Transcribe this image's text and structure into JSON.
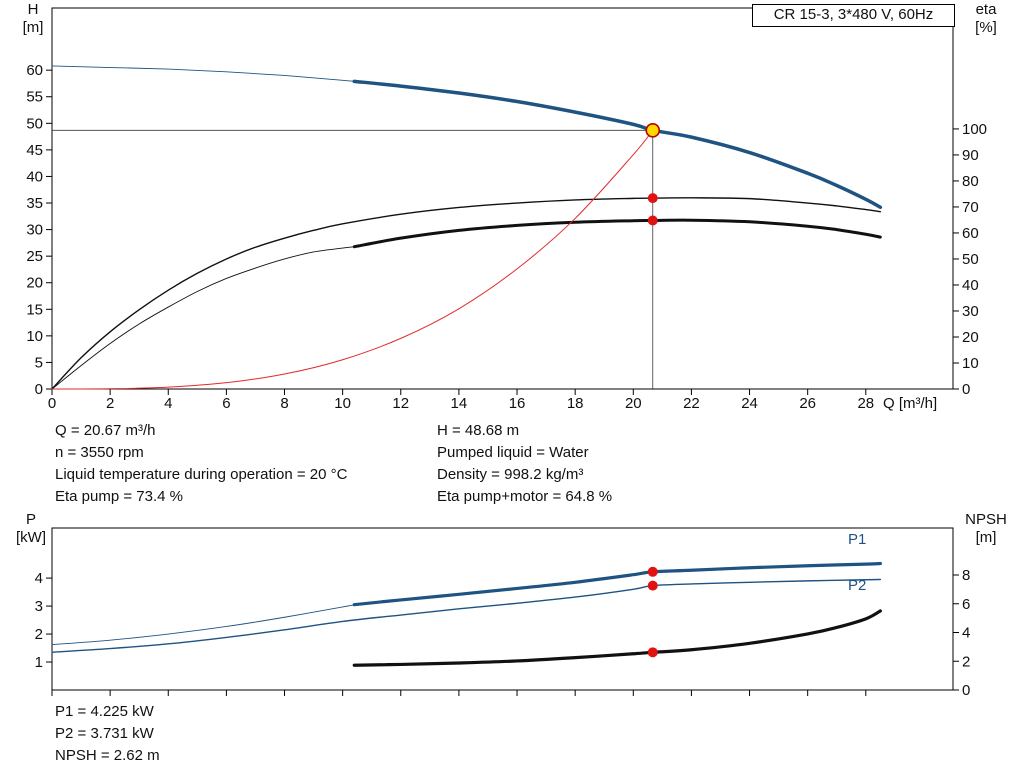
{
  "title_box": "CR 15-3, 3*480 V, 60Hz",
  "labels": {
    "h_axis": "H",
    "h_unit": "[m]",
    "eta_axis": "eta",
    "eta_unit": "[%]",
    "q_axis": "Q [m³/h]",
    "p_axis": "P",
    "p_unit": "[kW]",
    "npsh_axis": "NPSH",
    "npsh_unit": "[m]",
    "p1": "P1",
    "p2": "P2"
  },
  "colors": {
    "curve_blue": "#1e5382",
    "curve_black": "#111111",
    "system_red": "#e02b2b",
    "marker_red": "#e01212",
    "duty_fill": "#ffd900",
    "duty_stroke": "#b40000",
    "guide_gray": "#3c3c3c"
  },
  "info_top": {
    "left": [
      "Q = 20.67 m³/h",
      "n = 3550 rpm",
      "Liquid temperature during operation = 20 °C",
      "Eta pump = 73.4 %"
    ],
    "right": [
      "H = 48.68 m",
      "Pumped liquid = Water",
      "Density = 998.2 kg/m³",
      "Eta pump+motor = 64.8 %"
    ]
  },
  "info_bottom": [
    "P1 = 4.225 kW",
    "P2 = 3.731 kW",
    "NPSH = 2.62 m"
  ],
  "chart_data": [
    {
      "type": "line",
      "title": "CR 15-3, 3*480 V, 60Hz",
      "xlabel": "Q [m³/h]",
      "ylabel_left": "H [m]",
      "ylabel_right": "eta [%]",
      "x_range": [
        0,
        31
      ],
      "y_left_range": [
        0,
        71.7
      ],
      "y_right_range": [
        0,
        146.5
      ],
      "x_ticks": [
        0,
        2,
        4,
        6,
        8,
        10,
        12,
        14,
        16,
        18,
        20,
        22,
        24,
        26,
        28
      ],
      "y_left_ticks": [
        0,
        5,
        10,
        15,
        20,
        25,
        30,
        35,
        40,
        45,
        50,
        55,
        60
      ],
      "y_right_ticks": [
        0,
        10,
        20,
        30,
        40,
        50,
        60,
        70,
        80,
        90,
        100
      ],
      "show_x_tick_labels": true,
      "operating_point": {
        "Q": 20.67,
        "H": 48.68,
        "eta_pump": 73.4,
        "eta_pump_motor": 64.8
      },
      "series": [
        {
          "name": "head-curve-extension",
          "axis": "left",
          "color": "#1e5382",
          "width": 0.9,
          "points": [
            [
              0,
              60.8
            ],
            [
              2,
              60.5
            ],
            [
              4,
              60.2
            ],
            [
              6,
              59.7
            ],
            [
              8,
              59.0
            ],
            [
              10,
              58.1
            ],
            [
              10.4,
              57.9
            ]
          ]
        },
        {
          "name": "head-curve",
          "axis": "left",
          "color": "#1e5382",
          "width": 3.5,
          "points": [
            [
              10.4,
              57.9
            ],
            [
              12,
              57.0
            ],
            [
              14,
              55.7
            ],
            [
              16,
              54.1
            ],
            [
              18,
              52.1
            ],
            [
              20,
              49.8
            ],
            [
              20.67,
              48.68
            ],
            [
              22,
              47.4
            ],
            [
              24,
              44.5
            ],
            [
              26,
              40.6
            ],
            [
              27,
              38.3
            ],
            [
              28,
              35.7
            ],
            [
              28.5,
              34.2
            ]
          ]
        },
        {
          "name": "eta-pump-curve",
          "axis": "right",
          "color": "#111111",
          "width": 1.4,
          "points": [
            [
              0,
              0
            ],
            [
              1,
              12
            ],
            [
              2,
              22
            ],
            [
              3,
              30.5
            ],
            [
              4,
              38
            ],
            [
              5,
              44.5
            ],
            [
              6,
              50
            ],
            [
              7,
              54.5
            ],
            [
              8,
              58
            ],
            [
              9,
              61
            ],
            [
              10,
              63.5
            ],
            [
              12,
              67.2
            ],
            [
              14,
              69.8
            ],
            [
              16,
              71.5
            ],
            [
              18,
              72.7
            ],
            [
              20,
              73.3
            ],
            [
              20.67,
              73.4
            ],
            [
              22,
              73.5
            ],
            [
              24,
              73.2
            ],
            [
              26,
              71.5
            ],
            [
              27,
              70.4
            ],
            [
              28,
              69.0
            ],
            [
              28.5,
              68.2
            ]
          ]
        },
        {
          "name": "eta-pump-motor-extension",
          "axis": "right",
          "color": "#111111",
          "width": 0.9,
          "points": [
            [
              0,
              0
            ],
            [
              1,
              9
            ],
            [
              2,
              17.5
            ],
            [
              3,
              25
            ],
            [
              4,
              31.5
            ],
            [
              5,
              37.5
            ],
            [
              6,
              42.5
            ],
            [
              7,
              46.5
            ],
            [
              8,
              50
            ],
            [
              9,
              52.7
            ],
            [
              10,
              54.2
            ],
            [
              10.4,
              54.7
            ]
          ]
        },
        {
          "name": "eta-pump-motor-curve",
          "axis": "right",
          "color": "#111111",
          "width": 3,
          "points": [
            [
              10.4,
              54.7
            ],
            [
              12,
              58
            ],
            [
              14,
              61
            ],
            [
              16,
              62.9
            ],
            [
              18,
              64.1
            ],
            [
              20,
              64.7
            ],
            [
              20.67,
              64.8
            ],
            [
              22,
              64.9
            ],
            [
              24,
              64.3
            ],
            [
              26,
              62.6
            ],
            [
              27,
              61.3
            ],
            [
              28,
              59.5
            ],
            [
              28.5,
              58.4
            ]
          ]
        },
        {
          "name": "system-curve",
          "axis": "left",
          "color": "#e02b2b",
          "width": 1,
          "points": [
            [
              0,
              0
            ],
            [
              2,
              0.04
            ],
            [
              4,
              0.35
            ],
            [
              6,
              1.19
            ],
            [
              8,
              2.82
            ],
            [
              10,
              5.51
            ],
            [
              12,
              9.53
            ],
            [
              14,
              15.1
            ],
            [
              16,
              22.6
            ],
            [
              18,
              32.1
            ],
            [
              20,
              44.1
            ],
            [
              20.67,
              48.68
            ]
          ]
        }
      ],
      "guides": [
        {
          "name": "head-guide-horizontal",
          "type": "h",
          "value": 48.68,
          "x_from": 0,
          "x_to": 20.67
        },
        {
          "name": "flow-guide-vertical",
          "type": "v",
          "value": 20.67,
          "y_from": 0,
          "y_to": 48.68
        }
      ],
      "markers": [
        {
          "name": "duty-point",
          "x": 20.67,
          "y": 48.68,
          "axis": "left",
          "r": 6.5,
          "fill": "#ffd900",
          "stroke": "#b40000",
          "stroke_width": 1.6
        },
        {
          "name": "eta-pump-point",
          "x": 20.67,
          "y": 73.4,
          "axis": "right",
          "r": 5,
          "fill": "#e01212",
          "stroke": "none",
          "stroke_width": 0
        },
        {
          "name": "eta-pump-motor-point",
          "x": 20.67,
          "y": 64.8,
          "axis": "right",
          "r": 5,
          "fill": "#e01212",
          "stroke": "none",
          "stroke_width": 0
        }
      ]
    },
    {
      "type": "line",
      "title": "",
      "xlabel": "",
      "ylabel_left": "P [kW]",
      "ylabel_right": "NPSH [m]",
      "x_range": [
        0,
        31
      ],
      "y_left_range": [
        0,
        5.79
      ],
      "y_right_range": [
        0,
        11.27
      ],
      "x_ticks": [
        0,
        2,
        4,
        6,
        8,
        10,
        12,
        14,
        16,
        18,
        20,
        22,
        24,
        26,
        28
      ],
      "y_left_ticks": [
        1,
        2,
        3,
        4
      ],
      "y_right_ticks": [
        0,
        2,
        4,
        6,
        8
      ],
      "show_x_tick_labels": false,
      "operating_point": {
        "Q": 20.67,
        "P1": 4.225,
        "P2": 3.731,
        "NPSH": 2.62
      },
      "series": [
        {
          "name": "p1-curve-extension",
          "axis": "left",
          "color": "#1e5382",
          "width": 0.9,
          "points": [
            [
              0,
              1.62
            ],
            [
              2,
              1.78
            ],
            [
              4,
              2.0
            ],
            [
              6,
              2.27
            ],
            [
              8,
              2.6
            ],
            [
              10,
              2.97
            ],
            [
              10.4,
              3.05
            ]
          ]
        },
        {
          "name": "p1-curve",
          "axis": "left",
          "color": "#1e5382",
          "width": 3.2,
          "points": [
            [
              10.4,
              3.05
            ],
            [
              12,
              3.22
            ],
            [
              14,
              3.42
            ],
            [
              16,
              3.63
            ],
            [
              18,
              3.85
            ],
            [
              20,
              4.12
            ],
            [
              20.67,
              4.225
            ],
            [
              22,
              4.28
            ],
            [
              24,
              4.37
            ],
            [
              26,
              4.44
            ],
            [
              28,
              4.5
            ],
            [
              28.5,
              4.52
            ]
          ]
        },
        {
          "name": "p2-curve",
          "axis": "left",
          "color": "#1e5382",
          "width": 1.4,
          "points": [
            [
              0,
              1.35
            ],
            [
              2,
              1.48
            ],
            [
              4,
              1.65
            ],
            [
              6,
              1.88
            ],
            [
              8,
              2.15
            ],
            [
              10,
              2.45
            ],
            [
              12,
              2.68
            ],
            [
              14,
              2.9
            ],
            [
              16,
              3.1
            ],
            [
              18,
              3.32
            ],
            [
              20,
              3.6
            ],
            [
              20.67,
              3.731
            ],
            [
              22,
              3.79
            ],
            [
              24,
              3.85
            ],
            [
              26,
              3.9
            ],
            [
              28,
              3.94
            ],
            [
              28.5,
              3.95
            ]
          ]
        },
        {
          "name": "npsh-curve",
          "axis": "right",
          "color": "#111111",
          "width": 3.2,
          "points": [
            [
              10.4,
              1.72
            ],
            [
              12,
              1.78
            ],
            [
              14,
              1.88
            ],
            [
              16,
              2.02
            ],
            [
              18,
              2.25
            ],
            [
              20,
              2.52
            ],
            [
              20.67,
              2.62
            ],
            [
              22,
              2.8
            ],
            [
              24,
              3.25
            ],
            [
              26,
              3.9
            ],
            [
              27,
              4.35
            ],
            [
              28,
              4.95
            ],
            [
              28.5,
              5.5
            ]
          ]
        }
      ],
      "guides": [],
      "markers": [
        {
          "name": "p1-point",
          "x": 20.67,
          "y": 4.225,
          "axis": "left",
          "r": 5,
          "fill": "#e01212",
          "stroke": "none",
          "stroke_width": 0
        },
        {
          "name": "p2-point",
          "x": 20.67,
          "y": 3.731,
          "axis": "left",
          "r": 5,
          "fill": "#e01212",
          "stroke": "none",
          "stroke_width": 0
        },
        {
          "name": "npsh-point",
          "x": 20.67,
          "y": 2.62,
          "axis": "right",
          "r": 5,
          "fill": "#e01212",
          "stroke": "none",
          "stroke_width": 0
        }
      ]
    }
  ]
}
